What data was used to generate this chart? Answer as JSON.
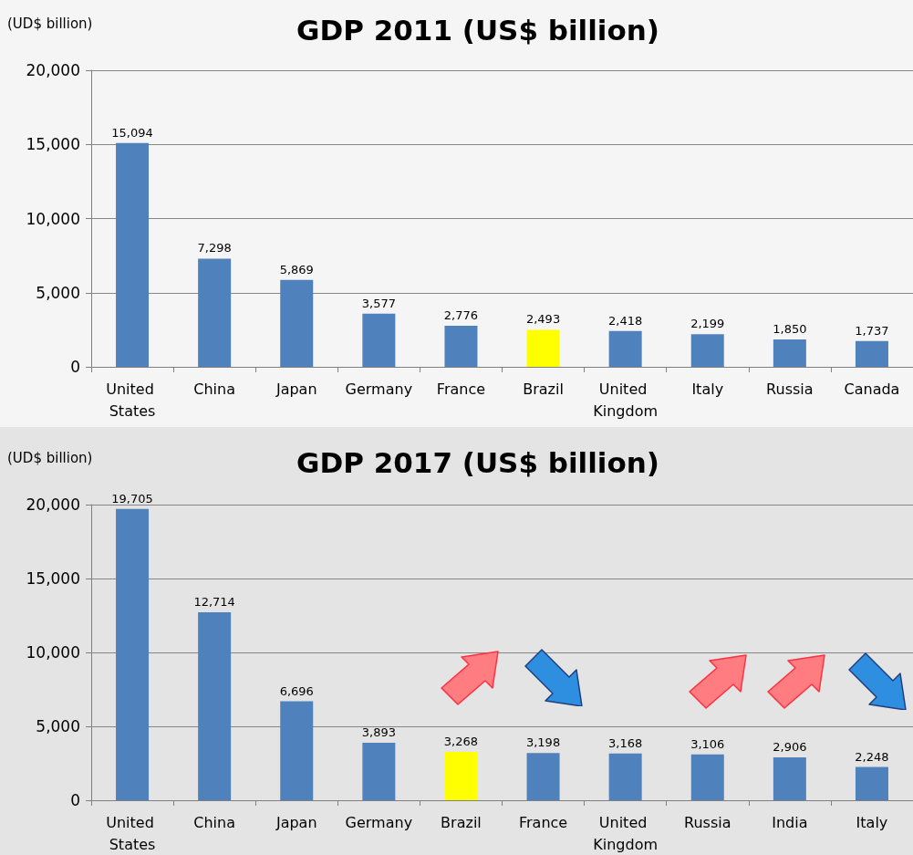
{
  "chart_data": [
    {
      "type": "bar",
      "title": "GDP 2011 (US$ billion)",
      "ylabel": "(UD$ billion)",
      "categories": [
        "United States",
        "China",
        "Japan",
        "Germany",
        "France",
        "Brazil",
        "United Kingdom",
        "Italy",
        "Russia",
        "Canada"
      ],
      "values": [
        15094,
        7298,
        5869,
        3577,
        2776,
        2493,
        2418,
        2199,
        1850,
        1737
      ],
      "colors": [
        "#4f81bd",
        "#4f81bd",
        "#4f81bd",
        "#4f81bd",
        "#4f81bd",
        "#ffff00",
        "#4f81bd",
        "#4f81bd",
        "#4f81bd",
        "#4f81bd"
      ],
      "value_labels": [
        "15,094",
        "7,298",
        "5,869",
        "3,577",
        "2,776",
        "2,493",
        "2,418",
        "2,199",
        "1,850",
        "1,737"
      ],
      "ylim": [
        0,
        20000
      ],
      "yticks": [
        {
          "value": 0,
          "label": "0"
        },
        {
          "value": 5000,
          "label": "5,000"
        },
        {
          "value": 10000,
          "label": "10,000"
        },
        {
          "value": 15000,
          "label": "15,000"
        },
        {
          "value": 20000,
          "label": "20,000"
        }
      ],
      "grid": "y"
    },
    {
      "type": "bar",
      "title": "GDP 2017 (US$ billion)",
      "ylabel": "(UD$ billion)",
      "categories": [
        "United States",
        "China",
        "Japan",
        "Germany",
        "Brazil",
        "France",
        "United Kingdom",
        "Russia",
        "India",
        "Italy"
      ],
      "values": [
        19705,
        12714,
        6696,
        3893,
        3268,
        3198,
        3168,
        3106,
        2906,
        2248
      ],
      "colors": [
        "#4f81bd",
        "#4f81bd",
        "#4f81bd",
        "#4f81bd",
        "#ffff00",
        "#4f81bd",
        "#4f81bd",
        "#4f81bd",
        "#4f81bd",
        "#4f81bd"
      ],
      "value_labels": [
        "19,705",
        "12,714",
        "6,696",
        "3,893",
        "3,268",
        "3,198",
        "3,168",
        "3,106",
        "2,906",
        "2,248"
      ],
      "ylim": [
        0,
        20000
      ],
      "yticks": [
        {
          "value": 0,
          "label": "0"
        },
        {
          "value": 5000,
          "label": "5,000"
        },
        {
          "value": 10000,
          "label": "10,000"
        },
        {
          "value": 15000,
          "label": "15,000"
        },
        {
          "value": 20000,
          "label": "20,000"
        }
      ],
      "grid": "y"
    }
  ]
}
